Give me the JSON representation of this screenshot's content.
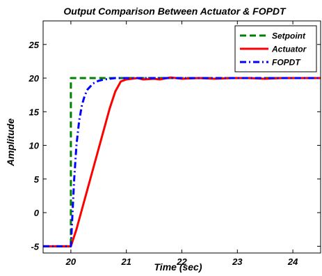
{
  "chart_data": {
    "type": "line",
    "title": "Output Comparison Between Actuator & FOPDT",
    "xlabel": "Time (sec)",
    "ylabel": "Amplitude",
    "xlim": [
      19.5,
      24.5
    ],
    "ylim": [
      -6,
      28.5
    ],
    "xticks": [
      20,
      21,
      22,
      23,
      24
    ],
    "yticks": [
      -5,
      0,
      5,
      10,
      15,
      20,
      25
    ],
    "grid": false,
    "legend_position": "top-right",
    "series": [
      {
        "name": "Setpoint",
        "color": "#008000",
        "style": "dashed",
        "x": [
          19.5,
          20.0,
          20.0,
          24.5
        ],
        "y": [
          -5,
          -5,
          20,
          20
        ]
      },
      {
        "name": "Actuator",
        "color": "#ff0000",
        "style": "solid",
        "x": [
          19.5,
          20.0,
          20.1,
          20.2,
          20.3,
          20.4,
          20.5,
          20.6,
          20.7,
          20.8,
          20.9,
          21.0,
          21.1,
          21.2,
          21.3,
          21.5,
          21.6,
          21.8,
          22.0,
          22.3,
          22.6,
          22.9,
          23.2,
          23.5,
          23.8,
          24.1,
          24.5
        ],
        "y": [
          -5,
          -5,
          -2.5,
          0.5,
          3.5,
          6.5,
          9.5,
          12.5,
          15.5,
          18.0,
          19.5,
          19.8,
          19.9,
          20.0,
          19.8,
          19.9,
          19.8,
          20.1,
          19.9,
          20.0,
          19.9,
          20.0,
          20.0,
          19.9,
          20.0,
          20.0,
          20.0
        ]
      },
      {
        "name": "FOPDT",
        "color": "#0000ff",
        "style": "dashdot",
        "x": [
          19.5,
          20.0,
          20.03,
          20.06,
          20.1,
          20.15,
          20.2,
          20.25,
          20.3,
          20.4,
          20.5,
          20.6,
          20.7,
          20.8,
          21.0,
          21.5,
          22.0,
          23.0,
          24.0,
          24.5
        ],
        "y": [
          -5,
          -5,
          0.0,
          5.0,
          10.0,
          13.7,
          16.0,
          17.4,
          18.3,
          19.2,
          19.6,
          19.8,
          19.9,
          20.0,
          20.0,
          20.0,
          20.0,
          20.0,
          20.0,
          20.0
        ]
      }
    ]
  }
}
